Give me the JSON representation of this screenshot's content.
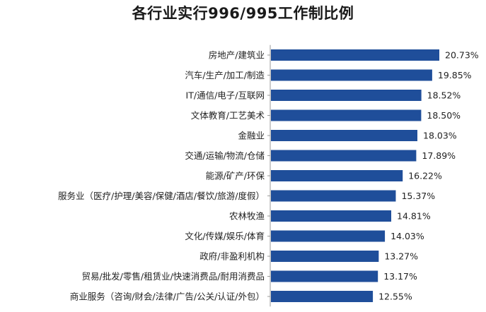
{
  "chart_data": {
    "type": "bar",
    "orientation": "horizontal",
    "title": "各行业实行996/995工作制比例",
    "categories": [
      "房地产/建筑业",
      "汽车/生产/加工/制造",
      "IT/通信/电子/互联网",
      "文体教育/工艺美术",
      "金融业",
      "交通/运输/物流/仓储",
      "能源/矿产/环保",
      "服务业（医疗/护理/美容/保健/酒店/餐饮/旅游/度假）",
      "农林牧渔",
      "文化/传媒/娱乐/体育",
      "政府/非盈利机构",
      "贸易/批发/零售/租赁业/快速消费品/耐用消费品",
      "商业服务（咨询/财会/法律/广告/公关/认证/外包）"
    ],
    "values": [
      20.73,
      19.85,
      18.52,
      18.5,
      18.03,
      17.89,
      16.22,
      15.37,
      14.81,
      14.03,
      13.27,
      13.17,
      12.55
    ],
    "value_labels": [
      "20.73%",
      "19.85%",
      "18.52%",
      "18.50%",
      "18.03%",
      "17.89%",
      "16.22%",
      "15.37%",
      "14.81%",
      "14.03%",
      "13.27%",
      "13.17%",
      "12.55%"
    ],
    "unit": "%",
    "xlim": [
      0,
      20.73
    ],
    "grid": false,
    "legend": "none",
    "bar_color": "#1f4e9a",
    "axis_color": "#9a9a9a"
  }
}
